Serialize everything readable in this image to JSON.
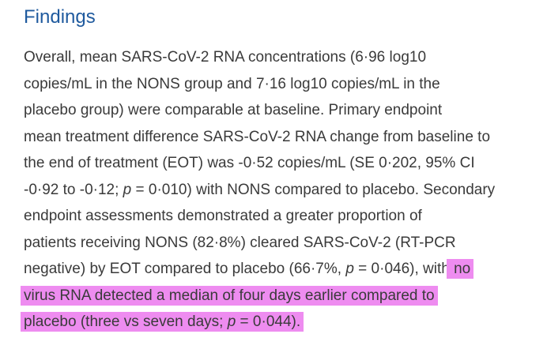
{
  "section": {
    "heading": "Findings"
  },
  "paragraph": {
    "line1": "Overall, mean SARS-CoV-2 RNA concentrations (6·96 log10",
    "line2": "copies/mL in the NONS group and 7·16 log10 copies/mL in the",
    "line3": "placebo group) were comparable at baseline. Primary endpoint",
    "line4": "mean treatment difference SARS-CoV-2 RNA change from baseline to",
    "line5": "the end of treatment (EOT) was -0·52 copies/mL (SE 0·202, 95% CI",
    "line6a": "-0·92 to -0·12; ",
    "line6p": "p",
    "line6b": " = 0·010) with NONS compared to placebo. Secondary",
    "line7": "endpoint assessments demonstrated a greater proportion of",
    "line8": "patients receiving NONS (82·8%) cleared SARS-CoV-2 (RT-PCR",
    "line9a": "negative) by EOT compared to placebo (66·7%, ",
    "line9p": "p",
    "line9b": " = 0·046), with",
    "line9hl": " no",
    "line10hl": "virus RNA detected a median of four days earlier compared to",
    "line11hl_a": "placebo (three vs seven days; ",
    "line11hl_p": "p",
    "line11hl_b": " = 0·044)."
  },
  "colors": {
    "heading": "#1f5a9e",
    "text": "#3a3a3a",
    "highlight": "#ee8cf0"
  }
}
